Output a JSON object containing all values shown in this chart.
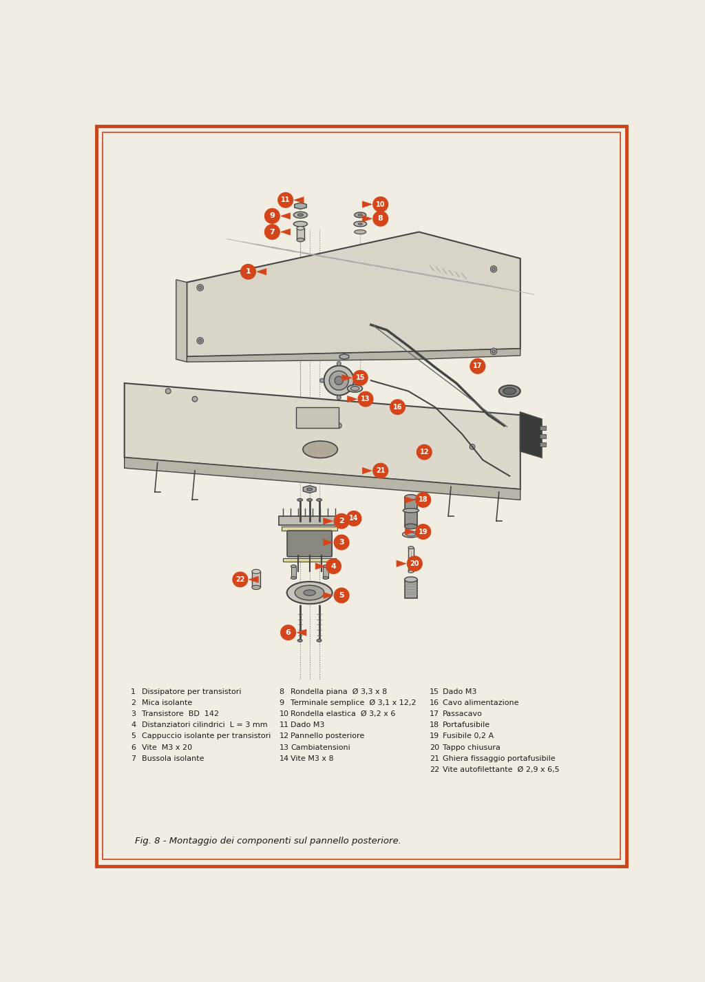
{
  "page_bg": "#f2ede2",
  "border_color_outer": "#cc4418",
  "border_color_inner": "#cc4418",
  "callout_color": "#d4461a",
  "text_color": "#1a1a1a",
  "line_color": "#2a2a2a",
  "panel_color": "#d8d3c8",
  "panel_edge": "#444444",
  "title_italic": "Fig. 8 - Montaggio dei componenti sul pannello posteriore.",
  "legend_col1": [
    [
      "1",
      "Dissipatore per transistori"
    ],
    [
      "2",
      "Mica isolante"
    ],
    [
      "3",
      "Transistore  BD  142"
    ],
    [
      "4",
      "Distanziatori cilindrici  L = 3 mm"
    ],
    [
      "5",
      "Cappuccio isolante per transistori"
    ],
    [
      "6",
      "Vite  M3 x 20"
    ],
    [
      "7",
      "Bussola isolante"
    ]
  ],
  "legend_col2": [
    [
      "8",
      "Rondella piana  Ø 3,3 x 8"
    ],
    [
      "9",
      "Terminale semplice  Ø 3,1 x 12,2"
    ],
    [
      "10",
      "Rondella elastica  Ø 3,2 x 6"
    ],
    [
      "11",
      "Dado M3"
    ],
    [
      "12",
      "Pannello posteriore"
    ],
    [
      "13",
      "Cambiatensioni"
    ],
    [
      "14",
      "Vite M3 x 8"
    ]
  ],
  "legend_col3": [
    [
      "15",
      "Dado M3"
    ],
    [
      "16",
      "Cavo alimentazione"
    ],
    [
      "17",
      "Passacavo"
    ],
    [
      "18",
      "Portafusibile"
    ],
    [
      "19",
      "Fusibile 0,2 A"
    ],
    [
      "20",
      "Tappo chiusura"
    ],
    [
      "21",
      "Ghiera fissaggio portafusibile"
    ],
    [
      "22",
      "Vite autofilettante  Ø 2,9 x 6,5"
    ]
  ]
}
